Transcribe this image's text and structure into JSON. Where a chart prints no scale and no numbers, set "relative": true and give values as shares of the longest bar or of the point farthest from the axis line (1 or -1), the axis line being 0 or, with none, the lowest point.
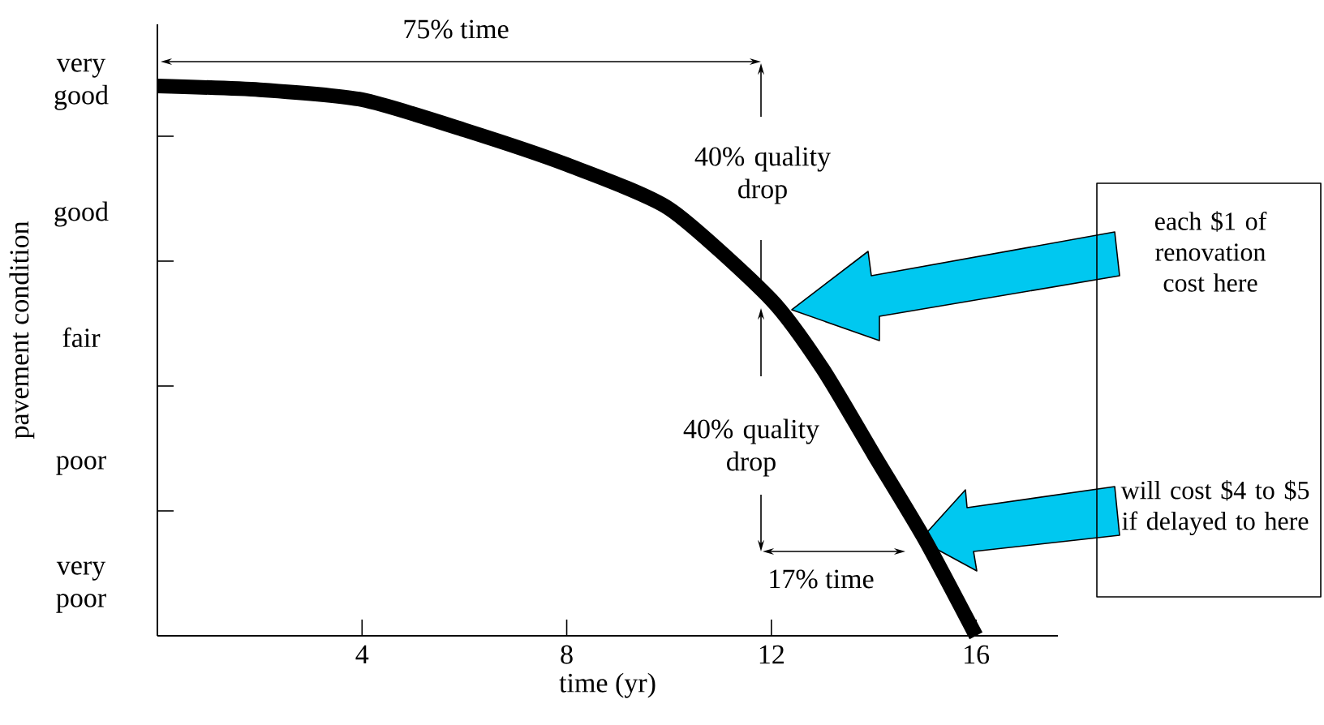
{
  "chart_data": {
    "type": "line",
    "xlabel": "time (yr)",
    "ylabel": "pavement condition",
    "relative": true,
    "x": [
      0,
      2,
      4,
      6,
      8,
      10,
      12,
      13,
      14,
      15,
      16
    ],
    "series": [
      {
        "color": "#000000",
        "values": [
          1,
          0.993,
          0.975,
          0.92,
          0.857,
          0.777,
          0.611,
          0.486,
          0.33,
          0.175,
          0
        ]
      }
    ],
    "xlim": [
      0,
      17.6
    ],
    "xticks": [
      4,
      8,
      12,
      16
    ],
    "annotations": [
      "very poor",
      "poor",
      "fair",
      "good",
      "very good",
      "75% time",
      "40% quality drop",
      "40% quality drop",
      "17% time",
      "each $1 of renovation cost here",
      "will cost $4 to $5 if delayed to here"
    ],
    "grid": false,
    "marker": "none",
    "line_style": "solid"
  }
}
